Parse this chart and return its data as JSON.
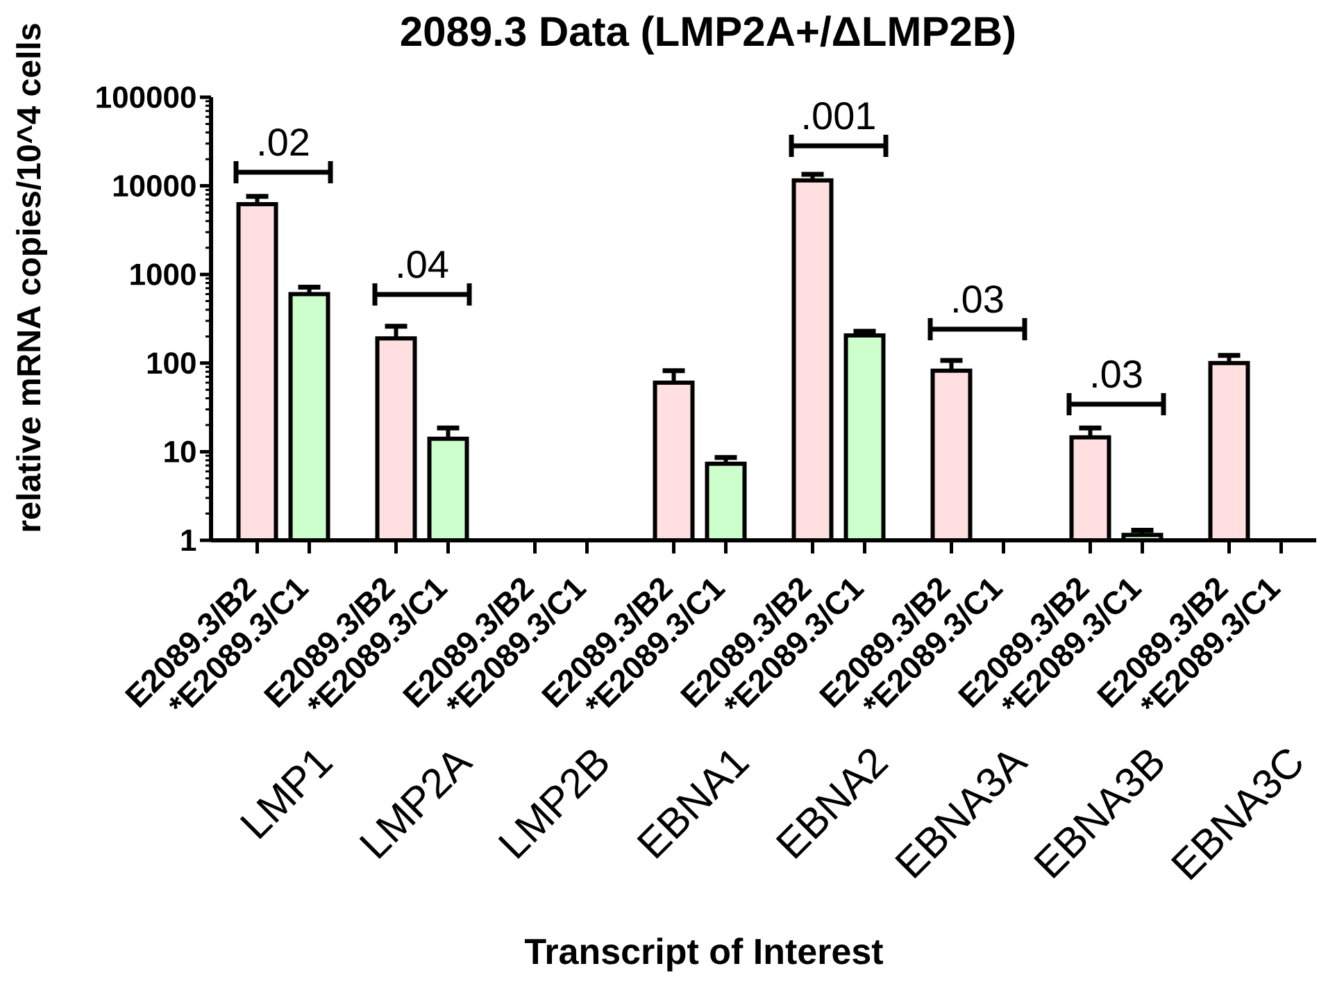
{
  "chart_data": {
    "type": "bar",
    "title": "2089.3 Data (LMP2A+/ΔLMP2B)",
    "xlabel": "Transcript of Interest",
    "ylabel": "relative mRNA copies/10^4 cells",
    "categories": [
      "LMP1",
      "LMP2A",
      "LMP2B",
      "EBNA1",
      "EBNA2",
      "EBNA3A",
      "EBNA3B",
      "EBNA3C"
    ],
    "series": [
      {
        "name": "E2089.3/B2",
        "color": "#ffdfdf",
        "values": [
          6200,
          190,
          null,
          60,
          11500,
          82,
          14.5,
          100
        ],
        "errors": [
          [
            6200,
            7600
          ],
          [
            190,
            260
          ],
          null,
          [
            60,
            82
          ],
          [
            11500,
            13500
          ],
          [
            82,
            107
          ],
          [
            14.5,
            18.5
          ],
          [
            100,
            122
          ]
        ]
      },
      {
        "name": "*E2089.3/C1",
        "color": "#ccffcc",
        "values": [
          600,
          14,
          null,
          7.3,
          205,
          null,
          1.15,
          null
        ],
        "errors": [
          [
            600,
            720
          ],
          [
            14,
            18.5
          ],
          null,
          [
            7.3,
            8.6
          ],
          [
            205,
            228
          ],
          null,
          [
            1.15,
            1.3
          ],
          null
        ]
      }
    ],
    "log": "y",
    "ylim": [
      1,
      100000
    ],
    "yticks": [
      1,
      10,
      100,
      1000,
      10000,
      100000
    ],
    "legend": "bottom",
    "annotations": [
      ".02",
      ".04",
      ".001",
      ".03",
      ".03"
    ]
  }
}
